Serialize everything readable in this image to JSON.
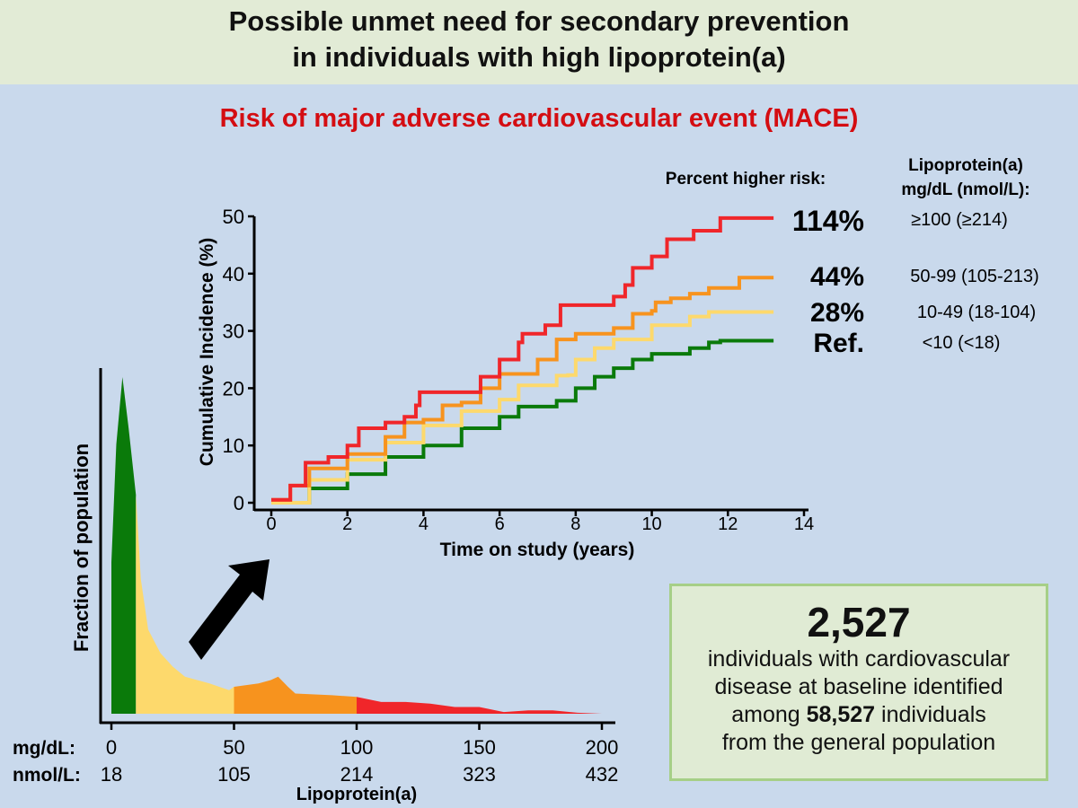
{
  "header": {
    "title_line1": "Possible unmet need for secondary prevention",
    "title_line2": "in individuals with high lipoprotein(a)",
    "subtitle": "Risk of major adverse cardiovascular event (MACE)"
  },
  "colors": {
    "background": "#c9d9ec",
    "banner": "#e2ebd6",
    "subtitle": "#d40d12",
    "green": "#0a7a0a",
    "yellow": "#fdd96c",
    "orange": "#f7931e",
    "red": "#f0262a"
  },
  "legend": {
    "risk_header": "Percent higher risk:",
    "lpa_header_1": "Lipoprotein(a)",
    "lpa_header_2": "mg/dL (nmol/L):",
    "rows": [
      {
        "risk": "114%",
        "range": "≥100 (≥214)",
        "color": "#f0262a"
      },
      {
        "risk": "44%",
        "range": "50-99 (105-213)",
        "color": "#f7931e"
      },
      {
        "risk": "28%",
        "range": "10-49 (18-104)",
        "color": "#fdd96c"
      },
      {
        "risk": "Ref.",
        "range": "<10 (<18)",
        "color": "#0a7a0a"
      }
    ]
  },
  "info": {
    "count": "2,527",
    "line1": "individuals with cardiovascular",
    "line2": "disease at baseline identified",
    "line3_pre": "among ",
    "line3_bold": "58,527",
    "line3_post": " individuals",
    "line4": "from the general population"
  },
  "chart_data": [
    {
      "type": "line",
      "step": true,
      "xlabel": "Time on study (years)",
      "ylabel": "Cumulative Incidence (%)",
      "xlim": [
        0,
        14
      ],
      "ylim": [
        0,
        50
      ],
      "xticks": [
        "0",
        "2",
        "4",
        "6",
        "8",
        "10",
        "12",
        "14"
      ],
      "yticks": [
        "0",
        "10",
        "20",
        "30",
        "40",
        "50"
      ],
      "series": [
        {
          "color": "#0a7a0a",
          "x": [
            0.2,
            1,
            2,
            3,
            4,
            5,
            6,
            6.5,
            7.5,
            8,
            8.5,
            9,
            9.5,
            10,
            11,
            11.5,
            11.8,
            13.2
          ],
          "y": [
            0,
            2.5,
            5,
            8,
            10,
            13,
            15,
            16.8,
            17.8,
            20,
            22,
            23.5,
            25,
            26,
            27,
            28,
            28.3,
            28.3
          ]
        },
        {
          "color": "#fdd96c",
          "x": [
            0,
            1,
            2,
            3,
            4,
            5,
            6,
            6.5,
            7.5,
            7.8,
            8,
            8.5,
            9,
            10,
            11,
            11.5,
            13.2
          ],
          "y": [
            0,
            4,
            7.5,
            10.5,
            13.5,
            16,
            18,
            20.5,
            22.2,
            22.3,
            25,
            27,
            28.5,
            31,
            32.5,
            33.3,
            33.3
          ]
        },
        {
          "color": "#f7931e",
          "x": [
            0,
            0.5,
            1,
            2,
            3,
            3.5,
            4,
            4.5,
            5,
            5.5,
            6,
            6.7,
            7,
            7.5,
            8,
            9,
            9.5,
            10,
            10.1,
            10.5,
            11,
            11.5,
            12.3,
            13.2
          ],
          "y": [
            0.5,
            3,
            6,
            8.5,
            11.5,
            14,
            14.5,
            17,
            17.5,
            20,
            22.5,
            22.5,
            25,
            28.5,
            29.5,
            30.5,
            33,
            33.5,
            35,
            35.7,
            36.5,
            37.5,
            39.3,
            39.3
          ]
        },
        {
          "color": "#f0262a",
          "x": [
            0,
            0.5,
            0.9,
            1.5,
            2,
            2.3,
            3,
            3.5,
            3.8,
            3.9,
            5,
            5.5,
            6,
            6.5,
            6.6,
            7.2,
            7.6,
            8.9,
            9,
            9.3,
            9.5,
            10,
            10.4,
            11.1,
            11.8,
            13.2
          ],
          "y": [
            0.5,
            3,
            7,
            8,
            10,
            13,
            14,
            15,
            17,
            19.3,
            19.3,
            22,
            25,
            28,
            29.5,
            31,
            34.5,
            34.5,
            36,
            38,
            41,
            43,
            46,
            47.5,
            49.7,
            49.7
          ]
        }
      ]
    },
    {
      "type": "area",
      "xlabel": "Lipoprotein(a)",
      "ylabel": "Fraction of population",
      "xlim": [
        0,
        200
      ],
      "xtick_row_labels": [
        "mg/dL:",
        "nmol/L:"
      ],
      "xticks_mgdl": [
        "0",
        "50",
        "100",
        "150",
        "200"
      ],
      "xticks_nmol": [
        "18",
        "105",
        "214",
        "323",
        "432"
      ],
      "segments": [
        {
          "from": 0,
          "to": 10,
          "color": "#0a7a0a"
        },
        {
          "from": 10,
          "to": 50,
          "color": "#fdd96c"
        },
        {
          "from": 50,
          "to": 100,
          "color": "#f7931e"
        },
        {
          "from": 100,
          "to": 200,
          "color": "#f0262a"
        }
      ],
      "x": [
        0,
        2,
        4.5,
        7,
        10,
        12,
        15,
        20,
        25,
        30,
        40,
        48,
        50,
        55,
        60,
        65,
        68,
        72,
        75,
        90,
        100,
        110,
        120,
        130,
        140,
        150,
        160,
        170,
        180,
        190,
        200
      ],
      "y": [
        0.45,
        0.8,
        1.0,
        0.85,
        0.65,
        0.4,
        0.25,
        0.18,
        0.14,
        0.11,
        0.09,
        0.07,
        0.08,
        0.085,
        0.09,
        0.1,
        0.11,
        0.08,
        0.06,
        0.055,
        0.05,
        0.035,
        0.035,
        0.03,
        0.02,
        0.02,
        0.005,
        0.01,
        0.01,
        0.003,
        0
      ]
    }
  ]
}
